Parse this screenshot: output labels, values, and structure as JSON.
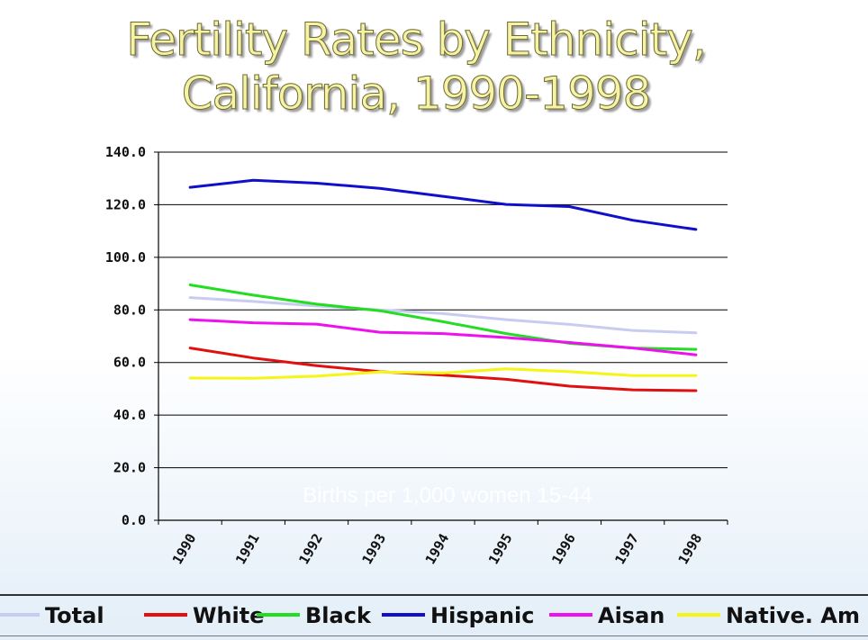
{
  "chart_data": {
    "type": "line",
    "title": "Fertility Rates by Ethnicity, California, 1990-1998",
    "title_lines": [
      "Fertility Rates by Ethnicity,",
      "California, 1990-1998"
    ],
    "ylabel": "Births per 1,000 women 15-44",
    "xlabel": "",
    "categories": [
      "1990",
      "1991",
      "1992",
      "1993",
      "1994",
      "1995",
      "1996",
      "1997",
      "1998"
    ],
    "ylim": [
      0,
      140
    ],
    "yticks": [
      "0.0",
      "20.0",
      "40.0",
      "60.0",
      "80.0",
      "100.0",
      "120.0",
      "140.0"
    ],
    "grid": true,
    "legend_position": "bottom",
    "series": [
      {
        "name": "Total",
        "color": "#c8ccf0",
        "values": [
          84.7,
          83.2,
          81.5,
          80.0,
          78.6,
          76.3,
          74.5,
          72.2,
          71.3
        ]
      },
      {
        "name": "White",
        "color": "#e01010",
        "values": [
          65.5,
          61.7,
          58.8,
          56.5,
          55.2,
          53.6,
          51.0,
          49.6,
          49.3
        ]
      },
      {
        "name": "Black",
        "color": "#22dd22",
        "values": [
          89.5,
          85.6,
          82.2,
          79.7,
          75.5,
          71.0,
          67.3,
          65.5,
          65.0
        ]
      },
      {
        "name": "Hispanic",
        "color": "#1010cc",
        "values": [
          126.6,
          129.3,
          128.2,
          126.2,
          123.2,
          120.1,
          119.3,
          114.1,
          110.6
        ]
      },
      {
        "name": "Aisan",
        "color": "#ee10ee",
        "values": [
          76.3,
          75.1,
          74.6,
          71.5,
          71.0,
          69.5,
          67.6,
          65.5,
          62.9
        ]
      },
      {
        "name": "Native. Am",
        "color": "#f5f516",
        "values": [
          54.1,
          54.0,
          54.8,
          56.4,
          56.0,
          57.6,
          56.5,
          55.0,
          55.0
        ]
      }
    ]
  }
}
